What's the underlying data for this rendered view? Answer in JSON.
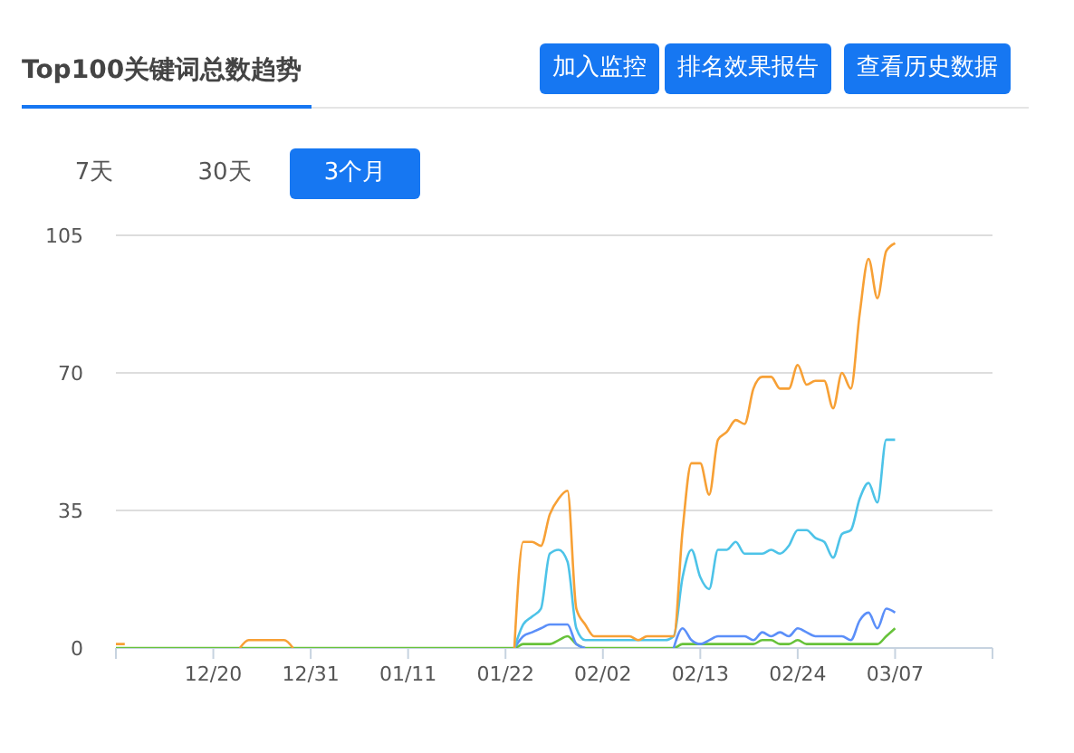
{
  "chart_data": {
    "type": "line",
    "title": "Top100关键词总数趋势",
    "annotations": [
      "加入监控",
      "排名效果报告",
      "查看历史数据",
      "7天",
      "30天",
      "3个月"
    ],
    "categories": [
      null,
      null,
      null,
      null,
      null,
      null,
      null,
      null,
      null,
      null,
      null,
      "12/20",
      null,
      null,
      null,
      null,
      null,
      null,
      null,
      null,
      null,
      null,
      "12/31",
      null,
      null,
      null,
      null,
      null,
      null,
      null,
      null,
      null,
      null,
      "01/11",
      null,
      null,
      null,
      null,
      null,
      null,
      null,
      null,
      null,
      null,
      "01/22",
      null,
      null,
      null,
      null,
      null,
      null,
      null,
      null,
      null,
      null,
      "02/02",
      null,
      null,
      null,
      null,
      null,
      null,
      null,
      null,
      null,
      null,
      "02/13",
      null,
      null,
      null,
      null,
      null,
      null,
      null,
      null,
      null,
      null,
      "02/24",
      null,
      null,
      null,
      null,
      null,
      null,
      null,
      null,
      null,
      null,
      "03/07",
      null,
      null,
      null,
      null,
      null,
      null,
      null,
      null,
      null,
      null,
      null
    ],
    "series": [
      {
        "color": "#f7a035",
        "values": [
          1,
          1,
          null,
          null,
          null,
          null,
          null,
          null,
          null,
          null,
          null,
          null,
          null,
          null,
          0,
          2,
          2,
          2,
          2,
          2,
          0,
          null,
          null,
          null,
          null,
          null,
          null,
          null,
          null,
          null,
          null,
          null,
          null,
          null,
          null,
          null,
          null,
          null,
          null,
          null,
          null,
          null,
          null,
          null,
          null,
          0,
          27,
          27,
          26,
          34,
          38,
          40,
          10,
          6,
          3,
          3,
          3,
          3,
          3,
          2,
          3,
          3,
          3,
          3,
          30,
          47,
          47,
          39,
          53,
          55,
          58,
          57,
          66,
          69,
          69,
          66,
          66,
          72,
          67,
          68,
          68,
          61,
          70,
          66,
          85,
          99,
          89,
          101,
          103,
          null,
          null,
          null,
          null,
          null,
          null,
          null,
          null,
          null,
          null,
          null
        ]
      },
      {
        "color": "#4dc3e8",
        "values": [
          null,
          null,
          null,
          null,
          null,
          null,
          null,
          null,
          null,
          null,
          null,
          null,
          null,
          null,
          null,
          null,
          null,
          null,
          null,
          null,
          null,
          null,
          null,
          null,
          null,
          null,
          null,
          null,
          null,
          null,
          null,
          null,
          null,
          null,
          null,
          null,
          null,
          null,
          null,
          null,
          null,
          null,
          null,
          null,
          null,
          0,
          6,
          8,
          10,
          24,
          25,
          22,
          5,
          2,
          2,
          2,
          2,
          2,
          2,
          2,
          2,
          2,
          2,
          3,
          18,
          25,
          18,
          15,
          25,
          25,
          27,
          24,
          24,
          24,
          25,
          24,
          26,
          30,
          30,
          28,
          27,
          23,
          29,
          30,
          38,
          42,
          37,
          53,
          53,
          null,
          null,
          null,
          null,
          null,
          null,
          null,
          null,
          null,
          null,
          null
        ]
      },
      {
        "color": "#5b8ff9",
        "values": [
          null,
          null,
          null,
          null,
          null,
          null,
          null,
          null,
          null,
          null,
          null,
          null,
          null,
          null,
          null,
          null,
          null,
          null,
          null,
          null,
          null,
          null,
          null,
          null,
          null,
          null,
          null,
          null,
          null,
          null,
          null,
          null,
          null,
          null,
          null,
          null,
          null,
          null,
          null,
          null,
          null,
          null,
          null,
          null,
          null,
          0,
          3,
          4,
          5,
          6,
          6,
          6,
          1,
          0,
          null,
          null,
          null,
          null,
          null,
          null,
          null,
          null,
          null,
          0,
          5,
          2,
          1,
          2,
          3,
          3,
          3,
          3,
          2,
          4,
          3,
          4,
          3,
          5,
          4,
          3,
          3,
          3,
          3,
          2,
          7,
          9,
          5,
          10,
          9,
          null,
          null,
          null,
          null,
          null,
          null,
          null,
          null,
          null,
          null,
          null
        ]
      },
      {
        "color": "#67c23a",
        "values": [
          0,
          0,
          0,
          0,
          0,
          0,
          0,
          0,
          0,
          0,
          0,
          0,
          0,
          0,
          0,
          0,
          0,
          0,
          0,
          0,
          0,
          0,
          0,
          0,
          0,
          0,
          0,
          0,
          0,
          0,
          0,
          0,
          0,
          0,
          0,
          0,
          0,
          0,
          0,
          0,
          0,
          0,
          0,
          0,
          0,
          0,
          1,
          1,
          1,
          1,
          2,
          3,
          1,
          0,
          0,
          0,
          0,
          0,
          0,
          0,
          0,
          0,
          0,
          0,
          1,
          1,
          1,
          1,
          1,
          1,
          1,
          1,
          1,
          2,
          2,
          1,
          1,
          2,
          1,
          1,
          1,
          1,
          1,
          1,
          1,
          1,
          1,
          3,
          5,
          null,
          null,
          null,
          null,
          null,
          null,
          null,
          null,
          null,
          null,
          null
        ]
      }
    ],
    "ylim": [
      0,
      105
    ],
    "yticks": [
      0,
      35,
      70,
      105
    ],
    "grid": "y",
    "legend": false
  }
}
